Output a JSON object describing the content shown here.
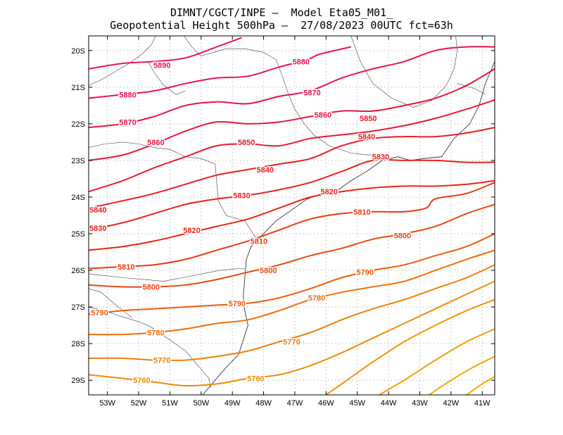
{
  "title_line1": "DIMNT/CGCT/INPE –  Model Eta05_M01_",
  "title_line2": "Geopotential Height 500hPa –  27/08/2023 00UTC fct=63h",
  "lat_labels": [
    "20S",
    "21S",
    "22S",
    "23S",
    "24S",
    "25S",
    "26S",
    "27S",
    "28S",
    "29S"
  ],
  "lon_labels": [
    "53W",
    "52W",
    "51W",
    "50W",
    "49W",
    "48W",
    "47W",
    "46W",
    "45W",
    "44W",
    "43W",
    "42W",
    "41W"
  ],
  "contours": [
    {
      "value": "5890",
      "labels": [
        {
          "text": "5890",
          "lon": -51.25,
          "lat": -20.4
        }
      ],
      "pts": [
        [
          -53.6,
          -20.5
        ],
        [
          -52.5,
          -20.35
        ],
        [
          -51.5,
          -20.3
        ],
        [
          -50.5,
          -20.2
        ],
        [
          -49.5,
          -19.9
        ],
        [
          -48.7,
          -19.65
        ]
      ]
    },
    {
      "value": "5880",
      "labels": [
        {
          "text": "5880",
          "lon": -52.35,
          "lat": -21.2
        },
        {
          "text": "5880",
          "lon": -46.8,
          "lat": -20.3
        }
      ],
      "pts": [
        [
          -53.6,
          -21.3
        ],
        [
          -52.5,
          -21.2
        ],
        [
          -51.5,
          -21.1
        ],
        [
          -50.5,
          -20.9
        ],
        [
          -49.5,
          -20.75
        ],
        [
          -48.5,
          -20.7
        ],
        [
          -47.5,
          -20.45
        ],
        [
          -46.6,
          -20.25
        ],
        [
          -46.2,
          -20.1
        ],
        [
          -45.2,
          -19.9
        ]
      ]
    },
    {
      "value": "5870",
      "labels": [
        {
          "text": "5870",
          "lon": -52.35,
          "lat": -21.95
        },
        {
          "text": "5870",
          "lon": -46.45,
          "lat": -21.15
        }
      ],
      "pts": [
        [
          -53.6,
          -22.1
        ],
        [
          -52.5,
          -22.0
        ],
        [
          -51.5,
          -21.8
        ],
        [
          -50.5,
          -21.5
        ],
        [
          -49.5,
          -21.4
        ],
        [
          -48.5,
          -21.45
        ],
        [
          -47.5,
          -21.25
        ],
        [
          -46.5,
          -21.1
        ],
        [
          -45.5,
          -20.75
        ],
        [
          -44.5,
          -20.5
        ],
        [
          -43.5,
          -20.3
        ],
        [
          -42.5,
          -20.0
        ],
        [
          -41.5,
          -19.9
        ],
        [
          -40.6,
          -19.9
        ]
      ]
    },
    {
      "value": "5860",
      "labels": [
        {
          "text": "5860",
          "lon": -51.45,
          "lat": -22.5
        },
        {
          "text": "5860",
          "lon": -46.1,
          "lat": -21.75
        }
      ],
      "pts": [
        [
          -53.6,
          -23.0
        ],
        [
          -52.5,
          -22.85
        ],
        [
          -51.5,
          -22.55
        ],
        [
          -50.5,
          -22.2
        ],
        [
          -49.5,
          -21.95
        ],
        [
          -48.5,
          -22.0
        ],
        [
          -47.5,
          -21.95
        ],
        [
          -46.5,
          -21.8
        ],
        [
          -45.5,
          -21.65
        ],
        [
          -44.5,
          -21.65
        ],
        [
          -43.5,
          -21.5
        ],
        [
          -42.5,
          -21.3
        ],
        [
          -41.5,
          -20.95
        ],
        [
          -40.6,
          -20.5
        ]
      ]
    },
    {
      "value": "5850",
      "labels": [
        {
          "text": "5850",
          "lon": -48.55,
          "lat": -22.5
        },
        {
          "text": "5850",
          "lon": -44.65,
          "lat": -21.85
        }
      ],
      "pts": [
        [
          -53.6,
          -23.85
        ],
        [
          -52.5,
          -23.55
        ],
        [
          -51.5,
          -23.2
        ],
        [
          -50.5,
          -22.9
        ],
        [
          -49.5,
          -22.6
        ],
        [
          -48.5,
          -22.55
        ],
        [
          -47.5,
          -22.6
        ],
        [
          -46.5,
          -22.4
        ],
        [
          -45.5,
          -22.3
        ],
        [
          -44.5,
          -22.2
        ],
        [
          -43.5,
          -22.05
        ],
        [
          -42.5,
          -21.85
        ],
        [
          -41.5,
          -21.6
        ],
        [
          -40.6,
          -21.35
        ]
      ]
    },
    {
      "value": "5840",
      "labels": [
        {
          "text": "5840",
          "lon": -53.3,
          "lat": -24.35
        },
        {
          "text": "5840",
          "lon": -47.95,
          "lat": -23.25
        },
        {
          "text": "5840",
          "lon": -44.7,
          "lat": -22.35
        }
      ],
      "pts": [
        [
          -53.6,
          -24.3
        ],
        [
          -52.5,
          -24.1
        ],
        [
          -51.5,
          -23.9
        ],
        [
          -50.5,
          -23.65
        ],
        [
          -49.5,
          -23.4
        ],
        [
          -48.5,
          -23.25
        ],
        [
          -47.5,
          -23.1
        ],
        [
          -46.5,
          -22.95
        ],
        [
          -45.5,
          -22.6
        ],
        [
          -44.5,
          -22.4
        ],
        [
          -43.5,
          -22.35
        ],
        [
          -42.5,
          -22.35
        ],
        [
          -41.5,
          -22.25
        ],
        [
          -40.6,
          -22.1
        ]
      ]
    },
    {
      "value": "5830",
      "labels": [
        {
          "text": "5830",
          "lon": -53.3,
          "lat": -24.85
        },
        {
          "text": "5830",
          "lon": -48.7,
          "lat": -23.95
        },
        {
          "text": "5830",
          "lon": -44.25,
          "lat": -22.9
        }
      ],
      "pts": [
        [
          -53.6,
          -24.9
        ],
        [
          -52.5,
          -24.7
        ],
        [
          -51.5,
          -24.45
        ],
        [
          -50.5,
          -24.2
        ],
        [
          -49.5,
          -24.05
        ],
        [
          -48.5,
          -23.95
        ],
        [
          -47.5,
          -23.8
        ],
        [
          -46.5,
          -23.6
        ],
        [
          -45.5,
          -23.3
        ],
        [
          -44.5,
          -23.0
        ],
        [
          -43.5,
          -23.0
        ],
        [
          -42.5,
          -23.0
        ],
        [
          -41.5,
          -23.05
        ],
        [
          -40.6,
          -23.05
        ]
      ]
    },
    {
      "value": "5820",
      "labels": [
        {
          "text": "5820",
          "lon": -50.3,
          "lat": -24.9
        },
        {
          "text": "5820",
          "lon": -45.9,
          "lat": -23.85
        }
      ],
      "pts": [
        [
          -53.6,
          -25.45
        ],
        [
          -52.5,
          -25.35
        ],
        [
          -51.5,
          -25.2
        ],
        [
          -50.5,
          -25.0
        ],
        [
          -49.5,
          -24.8
        ],
        [
          -48.5,
          -24.6
        ],
        [
          -47.5,
          -24.3
        ],
        [
          -46.5,
          -24.0
        ],
        [
          -45.5,
          -23.85
        ],
        [
          -44.5,
          -23.75
        ],
        [
          -43.5,
          -23.7
        ],
        [
          -42.5,
          -23.7
        ],
        [
          -41.5,
          -23.65
        ],
        [
          -40.6,
          -23.55
        ]
      ]
    },
    {
      "value": "5810",
      "labels": [
        {
          "text": "5810",
          "lon": -52.4,
          "lat": -25.9
        },
        {
          "text": "5810",
          "lon": -48.15,
          "lat": -25.2
        },
        {
          "text": "5810",
          "lon": -44.85,
          "lat": -24.4
        }
      ],
      "pts": [
        [
          -53.6,
          -25.95
        ],
        [
          -52.5,
          -25.9
        ],
        [
          -51.5,
          -25.85
        ],
        [
          -50.5,
          -25.7
        ],
        [
          -49.5,
          -25.45
        ],
        [
          -48.5,
          -25.2
        ],
        [
          -47.5,
          -24.9
        ],
        [
          -46.5,
          -24.6
        ],
        [
          -45.5,
          -24.45
        ],
        [
          -44.5,
          -24.4
        ],
        [
          -43.5,
          -24.4
        ],
        [
          -42.8,
          -24.3
        ],
        [
          -42.5,
          -24.05
        ],
        [
          -41.5,
          -23.9
        ],
        [
          -40.6,
          -23.6
        ]
      ]
    },
    {
      "value": "5800",
      "labels": [
        {
          "text": "5800",
          "lon": -51.6,
          "lat": -26.45
        },
        {
          "text": "5800",
          "lon": -47.85,
          "lat": -26.0
        },
        {
          "text": "5800",
          "lon": -43.55,
          "lat": -25.05
        }
      ],
      "pts": [
        [
          -53.6,
          -26.4
        ],
        [
          -52.5,
          -26.45
        ],
        [
          -51.5,
          -26.45
        ],
        [
          -50.5,
          -26.4
        ],
        [
          -49.5,
          -26.25
        ],
        [
          -48.5,
          -26.05
        ],
        [
          -47.5,
          -25.85
        ],
        [
          -46.5,
          -25.6
        ],
        [
          -45.5,
          -25.4
        ],
        [
          -44.5,
          -25.15
        ],
        [
          -43.5,
          -25.0
        ],
        [
          -42.5,
          -24.8
        ],
        [
          -41.5,
          -24.45
        ],
        [
          -40.6,
          -24.2
        ]
      ]
    },
    {
      "value": "5790",
      "labels": [
        {
          "text": "5790",
          "lon": -53.25,
          "lat": -27.15
        },
        {
          "text": "5790",
          "lon": -48.85,
          "lat": -26.9
        },
        {
          "text": "5790",
          "lon": -44.75,
          "lat": -26.05
        }
      ],
      "pts": [
        [
          -53.6,
          -27.2
        ],
        [
          -52.5,
          -27.1
        ],
        [
          -51.5,
          -27.05
        ],
        [
          -50.5,
          -27.0
        ],
        [
          -49.5,
          -26.95
        ],
        [
          -48.5,
          -26.9
        ],
        [
          -47.5,
          -26.75
        ],
        [
          -46.5,
          -26.5
        ],
        [
          -45.5,
          -26.2
        ],
        [
          -44.5,
          -26.0
        ],
        [
          -43.5,
          -25.85
        ],
        [
          -42.5,
          -25.6
        ],
        [
          -41.5,
          -25.35
        ],
        [
          -40.6,
          -25.0
        ]
      ]
    },
    {
      "value": "5780",
      "labels": [
        {
          "text": "5780",
          "lon": -51.45,
          "lat": -27.7
        },
        {
          "text": "5780",
          "lon": -46.3,
          "lat": -26.75
        }
      ],
      "pts": [
        [
          -53.6,
          -27.75
        ],
        [
          -52.5,
          -27.75
        ],
        [
          -51.5,
          -27.7
        ],
        [
          -50.5,
          -27.6
        ],
        [
          -49.5,
          -27.45
        ],
        [
          -48.5,
          -27.35
        ],
        [
          -47.5,
          -27.1
        ],
        [
          -46.5,
          -26.8
        ],
        [
          -45.5,
          -26.6
        ],
        [
          -44.5,
          -26.45
        ],
        [
          -43.5,
          -26.3
        ],
        [
          -42.5,
          -26.0
        ],
        [
          -41.5,
          -25.7
        ],
        [
          -40.6,
          -25.45
        ]
      ]
    },
    {
      "value": "5770",
      "labels": [
        {
          "text": "5770",
          "lon": -51.25,
          "lat": -28.45
        },
        {
          "text": "5770",
          "lon": -47.1,
          "lat": -27.95
        }
      ],
      "pts": [
        [
          -53.6,
          -28.4
        ],
        [
          -52.5,
          -28.4
        ],
        [
          -51.5,
          -28.45
        ],
        [
          -50.5,
          -28.45
        ],
        [
          -49.5,
          -28.35
        ],
        [
          -48.5,
          -28.2
        ],
        [
          -47.5,
          -27.95
        ],
        [
          -46.5,
          -27.7
        ],
        [
          -45.5,
          -27.35
        ],
        [
          -44.5,
          -27.05
        ],
        [
          -43.5,
          -26.8
        ],
        [
          -42.5,
          -26.5
        ],
        [
          -41.5,
          -26.2
        ],
        [
          -40.6,
          -25.85
        ]
      ]
    },
    {
      "value": "5760",
      "labels": [
        {
          "text": "5760",
          "lon": -51.9,
          "lat": -29.0
        },
        {
          "text": "5760",
          "lon": -48.25,
          "lat": -28.95
        }
      ],
      "pts": [
        [
          -53.6,
          -28.85
        ],
        [
          -52.5,
          -28.95
        ],
        [
          -51.5,
          -29.05
        ],
        [
          -50.5,
          -29.15
        ],
        [
          -49.5,
          -29.1
        ],
        [
          -48.5,
          -28.95
        ],
        [
          -47.5,
          -28.85
        ],
        [
          -46.5,
          -28.6
        ],
        [
          -45.5,
          -28.25
        ],
        [
          -44.5,
          -27.85
        ],
        [
          -43.5,
          -27.45
        ],
        [
          -42.5,
          -27.05
        ],
        [
          -41.5,
          -26.65
        ],
        [
          -40.6,
          -26.3
        ]
      ]
    },
    {
      "value": "5750",
      "labels": [],
      "pts": [
        [
          -46.0,
          -29.4
        ],
        [
          -45.5,
          -29.1
        ],
        [
          -44.5,
          -28.5
        ],
        [
          -43.5,
          -27.95
        ],
        [
          -42.5,
          -27.5
        ],
        [
          -41.5,
          -27.1
        ],
        [
          -40.6,
          -26.8
        ]
      ]
    },
    {
      "value": "5740",
      "labels": [],
      "pts": [
        [
          -44.3,
          -29.4
        ],
        [
          -43.5,
          -29.0
        ],
        [
          -42.5,
          -28.45
        ],
        [
          -41.5,
          -27.95
        ],
        [
          -40.6,
          -27.6
        ]
      ]
    },
    {
      "value": "5730",
      "labels": [],
      "pts": [
        [
          -42.7,
          -29.4
        ],
        [
          -42.0,
          -29.0
        ],
        [
          -41.3,
          -28.65
        ],
        [
          -40.6,
          -28.35
        ]
      ]
    },
    {
      "value": "5720",
      "labels": [],
      "pts": [
        [
          -41.5,
          -29.4
        ],
        [
          -41.0,
          -29.1
        ],
        [
          -40.6,
          -28.9
        ]
      ]
    }
  ],
  "color_ramp": [
    "#e8145a",
    "#e8144e",
    "#e81446",
    "#e61640",
    "#e81832",
    "#e81c28",
    "#e8201e",
    "#e82614",
    "#ea3a10",
    "#ea4810",
    "#ec5c0c",
    "#ee6e0c",
    "#f07e0a",
    "#f08a08",
    "#f29408",
    "#f29e06",
    "#f2a806",
    "#f2b006"
  ]
}
